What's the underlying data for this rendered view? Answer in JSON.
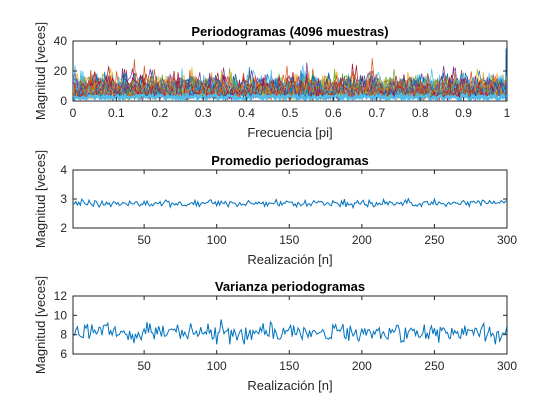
{
  "chart_data": [
    {
      "type": "line",
      "title": "Periodogramas (4096 muestras)",
      "xlabel": "Frecuencia [pi]",
      "ylabel": "Magnitud [veces]",
      "xlim": [
        0,
        1
      ],
      "ylim": [
        0,
        40
      ],
      "xticks": [
        "0",
        "0.1",
        "0.2",
        "0.3",
        "0.4",
        "0.5",
        "0.6",
        "0.7",
        "0.8",
        "0.9",
        "1"
      ],
      "yticks": [
        "0",
        "20",
        "40"
      ],
      "grid": false,
      "series_count": 300,
      "series_note": "noise periodograms, values mostly between 0 and 25",
      "colors": [
        "#0072BD",
        "#D95319",
        "#EDB120",
        "#7E2F8E",
        "#77AC30",
        "#4DBEEE",
        "#A2142F"
      ]
    },
    {
      "type": "line",
      "title": "Promedio periodogramas",
      "xlabel": "Realización [n]",
      "ylabel": "Magnitud [veces]",
      "xlim": [
        1,
        300
      ],
      "ylim": [
        2,
        4
      ],
      "xticks": [
        "50",
        "100",
        "150",
        "200",
        "250",
        "300"
      ],
      "yticks": [
        "2",
        "3",
        "4"
      ],
      "grid": false,
      "color": "#0072BD",
      "mean": 2.85,
      "range": [
        2.7,
        3.05
      ]
    },
    {
      "type": "line",
      "title": "Varianza periodogramas",
      "xlabel": "Realización [n]",
      "ylabel": "Magnitud [veces]",
      "xlim": [
        1,
        300
      ],
      "ylim": [
        6,
        12
      ],
      "xticks": [
        "50",
        "100",
        "150",
        "200",
        "250",
        "300"
      ],
      "yticks": [
        "6",
        "8",
        "10",
        "12"
      ],
      "grid": false,
      "color": "#0072BD",
      "mean": 8.2,
      "range": [
        7.0,
        9.8
      ]
    }
  ]
}
